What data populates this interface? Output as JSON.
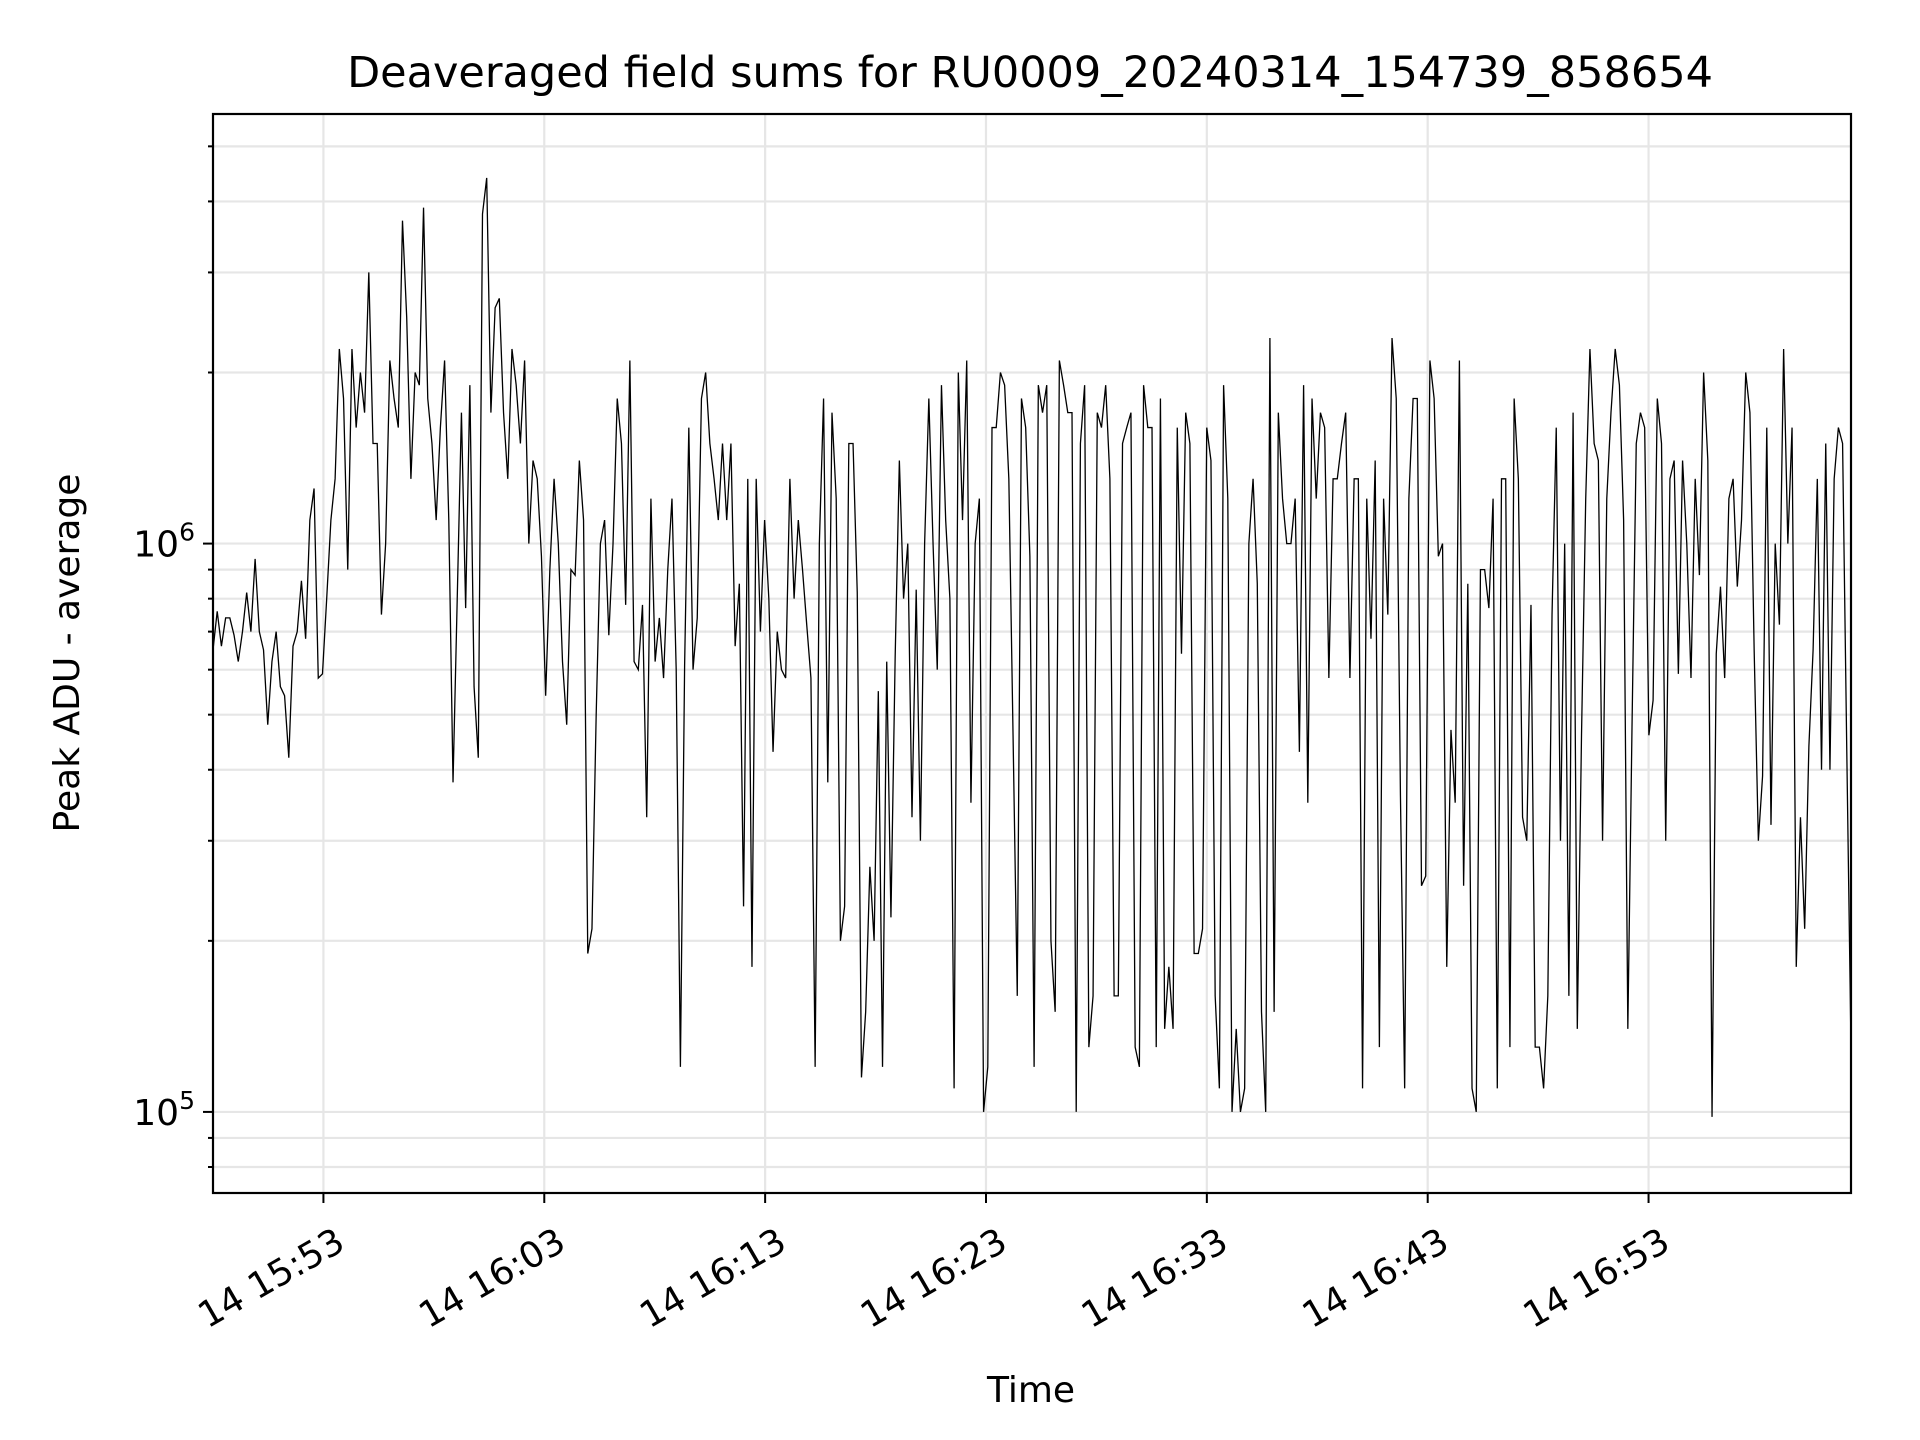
{
  "chart_data": {
    "type": "line",
    "title": "Deaveraged field sums for RU0009_20240314_154739_858654",
    "xlabel": "Time",
    "ylabel": "Peak ADU - average",
    "yscale": "log",
    "ylim": [
      72000,
      5700000
    ],
    "y_ticks": [
      {
        "value": 100000,
        "base": "10",
        "exp": "5"
      },
      {
        "value": 1000000,
        "base": "10",
        "exp": "6"
      }
    ],
    "xlim": [
      "2024-03-14 15:48:00",
      "2024-03-14 17:02:10"
    ],
    "x_ticks": [
      {
        "value": "2024-03-14 15:53:00",
        "label": "14 15:53"
      },
      {
        "value": "2024-03-14 16:03:00",
        "label": "14 16:03"
      },
      {
        "value": "2024-03-14 16:13:00",
        "label": "14 16:13"
      },
      {
        "value": "2024-03-14 16:23:00",
        "label": "14 16:23"
      },
      {
        "value": "2024-03-14 16:33:00",
        "label": "14 16:33"
      },
      {
        "value": "2024-03-14 16:43:00",
        "label": "14 16:43"
      },
      {
        "value": "2024-03-14 16:53:00",
        "label": "14 16:53"
      }
    ],
    "grid": true,
    "line_color": "#000000",
    "series": [
      {
        "x_start": "2024-03-14 15:48:00",
        "x_end": "2024-03-14 17:02:10",
        "y": [
          650000,
          760000,
          660000,
          740000,
          740000,
          690000,
          620000,
          700000,
          820000,
          700000,
          940000,
          700000,
          650000,
          480000,
          620000,
          700000,
          560000,
          540000,
          420000,
          660000,
          700000,
          860000,
          680000,
          1100000,
          1250000,
          580000,
          590000,
          800000,
          1100000,
          1300000,
          2200000,
          1800000,
          900000,
          2200000,
          1600000,
          2000000,
          1700000,
          3000000,
          1500000,
          1500000,
          750000,
          1000000,
          2100000,
          1800000,
          1600000,
          3700000,
          2500000,
          1300000,
          2000000,
          1900000,
          3900000,
          1800000,
          1500000,
          1100000,
          1600000,
          2100000,
          1100000,
          380000,
          800000,
          1700000,
          770000,
          1900000,
          560000,
          420000,
          3800000,
          4400000,
          1700000,
          2600000,
          2700000,
          1700000,
          1300000,
          2200000,
          1900000,
          1500000,
          2100000,
          1000000,
          1400000,
          1300000,
          950000,
          540000,
          900000,
          1300000,
          1000000,
          620000,
          480000,
          900000,
          880000,
          1400000,
          1100000,
          190000,
          210000,
          500000,
          1000000,
          1100000,
          690000,
          1000000,
          1800000,
          1500000,
          780000,
          2100000,
          620000,
          600000,
          780000,
          330000,
          1200000,
          620000,
          740000,
          580000,
          900000,
          1200000,
          600000,
          120000,
          610000,
          1600000,
          600000,
          740000,
          1800000,
          2000000,
          1500000,
          1300000,
          1100000,
          1500000,
          1100000,
          1500000,
          660000,
          850000,
          230000,
          1300000,
          180000,
          1300000,
          700000,
          1100000,
          800000,
          430000,
          700000,
          600000,
          580000,
          1300000,
          800000,
          1100000,
          900000,
          720000,
          580000,
          120000,
          1000000,
          1800000,
          380000,
          1700000,
          1200000,
          200000,
          230000,
          1500000,
          1500000,
          820000,
          115000,
          150000,
          270000,
          200000,
          550000,
          120000,
          620000,
          220000,
          630000,
          1400000,
          800000,
          1000000,
          330000,
          830000,
          300000,
          1000000,
          1800000,
          1000000,
          600000,
          1900000,
          1100000,
          800000,
          110000,
          2000000,
          1100000,
          2100000,
          350000,
          1000000,
          1200000,
          100000,
          120000,
          1600000,
          1600000,
          2000000,
          1900000,
          1300000,
          460000,
          160000,
          1800000,
          1600000,
          950000,
          120000,
          1900000,
          1700000,
          1900000,
          200000,
          150000,
          2100000,
          1900000,
          1700000,
          1700000,
          100000,
          1500000,
          1900000,
          130000,
          160000,
          1700000,
          1600000,
          1900000,
          1300000,
          160000,
          160000,
          1500000,
          1600000,
          1700000,
          130000,
          120000,
          1900000,
          1600000,
          1600000,
          130000,
          1800000,
          140000,
          180000,
          140000,
          1600000,
          640000,
          1700000,
          1500000,
          190000,
          190000,
          210000,
          1600000,
          1400000,
          160000,
          110000,
          1900000,
          1200000,
          100000,
          140000,
          100000,
          110000,
          1000000,
          1300000,
          850000,
          150000,
          100000,
          2300000,
          150000,
          1700000,
          1200000,
          1000000,
          1000000,
          1200000,
          430000,
          1900000,
          350000,
          1800000,
          1200000,
          1700000,
          1600000,
          580000,
          1300000,
          1300000,
          1500000,
          1700000,
          580000,
          1300000,
          1300000,
          110000,
          1200000,
          680000,
          1400000,
          130000,
          1200000,
          750000,
          2300000,
          1800000,
          360000,
          110000,
          1200000,
          1800000,
          1800000,
          250000,
          260000,
          2100000,
          1800000,
          950000,
          1000000,
          180000,
          470000,
          350000,
          2100000,
          250000,
          850000,
          110000,
          100000,
          900000,
          900000,
          770000,
          1200000,
          110000,
          1300000,
          1300000,
          130000,
          1800000,
          1300000,
          330000,
          300000,
          780000,
          130000,
          130000,
          110000,
          160000,
          750000,
          1600000,
          300000,
          1000000,
          160000,
          1700000,
          140000,
          460000,
          1200000,
          2200000,
          1500000,
          1400000,
          300000,
          1200000,
          1700000,
          2200000,
          1900000,
          1100000,
          140000,
          480000,
          1500000,
          1700000,
          1600000,
          460000,
          530000,
          1800000,
          1500000,
          300000,
          1300000,
          1400000,
          590000,
          1400000,
          1000000,
          580000,
          1300000,
          880000,
          2000000,
          1400000,
          98000,
          640000,
          840000,
          580000,
          1200000,
          1300000,
          840000,
          1100000,
          2000000,
          1700000,
          650000,
          300000,
          390000,
          1600000,
          320000,
          1000000,
          720000,
          2200000,
          1000000,
          1600000,
          180000,
          330000,
          210000,
          440000,
          650000,
          1300000,
          400000,
          1500000,
          400000,
          1300000,
          1600000,
          1500000,
          430000,
          130000
        ]
      }
    ]
  }
}
